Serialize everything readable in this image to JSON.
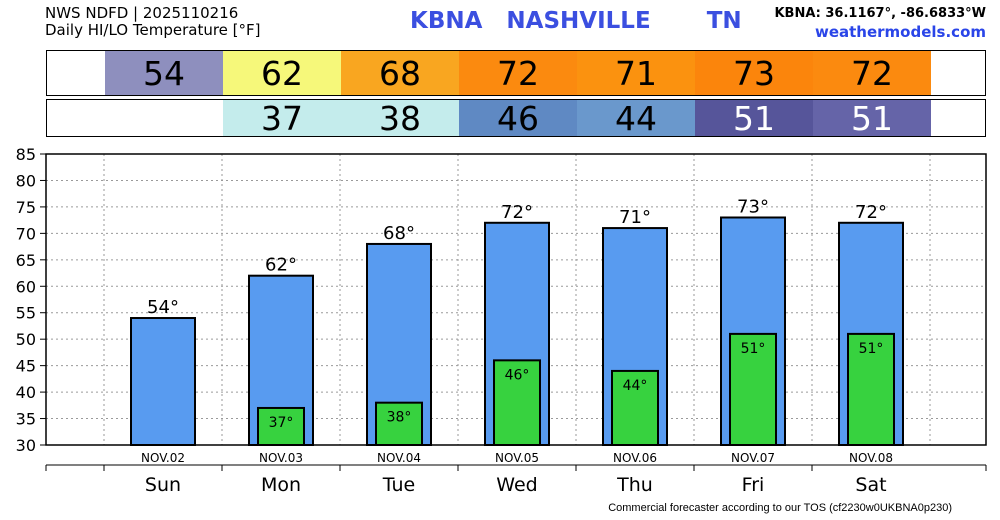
{
  "header": {
    "line1": "NWS NDFD | 2025110216",
    "line2": "Daily HI/LO Temperature [°F]",
    "station": "KBNA   NASHVILLE       TN",
    "coords": "KBNA: 36.1167°, -86.6833°W",
    "site": "weathermodels.com"
  },
  "footer": "Commercial forecaster according to our TOS (cf2230w0UKBNA0p230)",
  "strips": {
    "hi": [
      {
        "label": "54",
        "color": "#8e8fbe",
        "text_color": "#000000"
      },
      {
        "label": "62",
        "color": "#f6f87a",
        "text_color": "#000000"
      },
      {
        "label": "68",
        "color": "#f9a620",
        "text_color": "#000000"
      },
      {
        "label": "72",
        "color": "#fb8a0f",
        "text_color": "#000000"
      },
      {
        "label": "71",
        "color": "#fb920f",
        "text_color": "#000000"
      },
      {
        "label": "73",
        "color": "#fb850c",
        "text_color": "#000000"
      },
      {
        "label": "72",
        "color": "#fb8a0f",
        "text_color": "#000000"
      }
    ],
    "lo": [
      {
        "label": "37",
        "color": "#c4ecec",
        "text_color": "#000000"
      },
      {
        "label": "38",
        "color": "#c4ecec",
        "text_color": "#000000"
      },
      {
        "label": "46",
        "color": "#5f89c3",
        "text_color": "#000000"
      },
      {
        "label": "44",
        "color": "#6a98cc",
        "text_color": "#000000"
      },
      {
        "label": "51",
        "color": "#56559a",
        "text_color": "#ffffff"
      },
      {
        "label": "51",
        "color": "#6564a8",
        "text_color": "#ffffff"
      }
    ]
  },
  "chart_data": {
    "type": "bar",
    "categories": [
      "Sun",
      "Mon",
      "Tue",
      "Wed",
      "Thu",
      "Fri",
      "Sat"
    ],
    "dates": [
      "NOV.02",
      "NOV.03",
      "NOV.04",
      "NOV.05",
      "NOV.06",
      "NOV.07",
      "NOV.08"
    ],
    "series": [
      {
        "values": [
          54,
          62,
          68,
          72,
          71,
          73,
          72
        ],
        "labels": [
          "54°",
          "62°",
          "68°",
          "72°",
          "71°",
          "73°",
          "72°"
        ],
        "color": "#589bf0"
      },
      {
        "values": [
          null,
          37,
          38,
          46,
          44,
          51,
          51
        ],
        "labels": [
          "",
          "37°",
          "38°",
          "46°",
          "44°",
          "51°",
          "51°"
        ],
        "color": "#37d23f"
      }
    ],
    "yticks": [
      "30",
      "35",
      "40",
      "45",
      "50",
      "55",
      "60",
      "65",
      "70",
      "75",
      "80",
      "85"
    ],
    "ylim": [
      30,
      85
    ],
    "grid": true
  }
}
